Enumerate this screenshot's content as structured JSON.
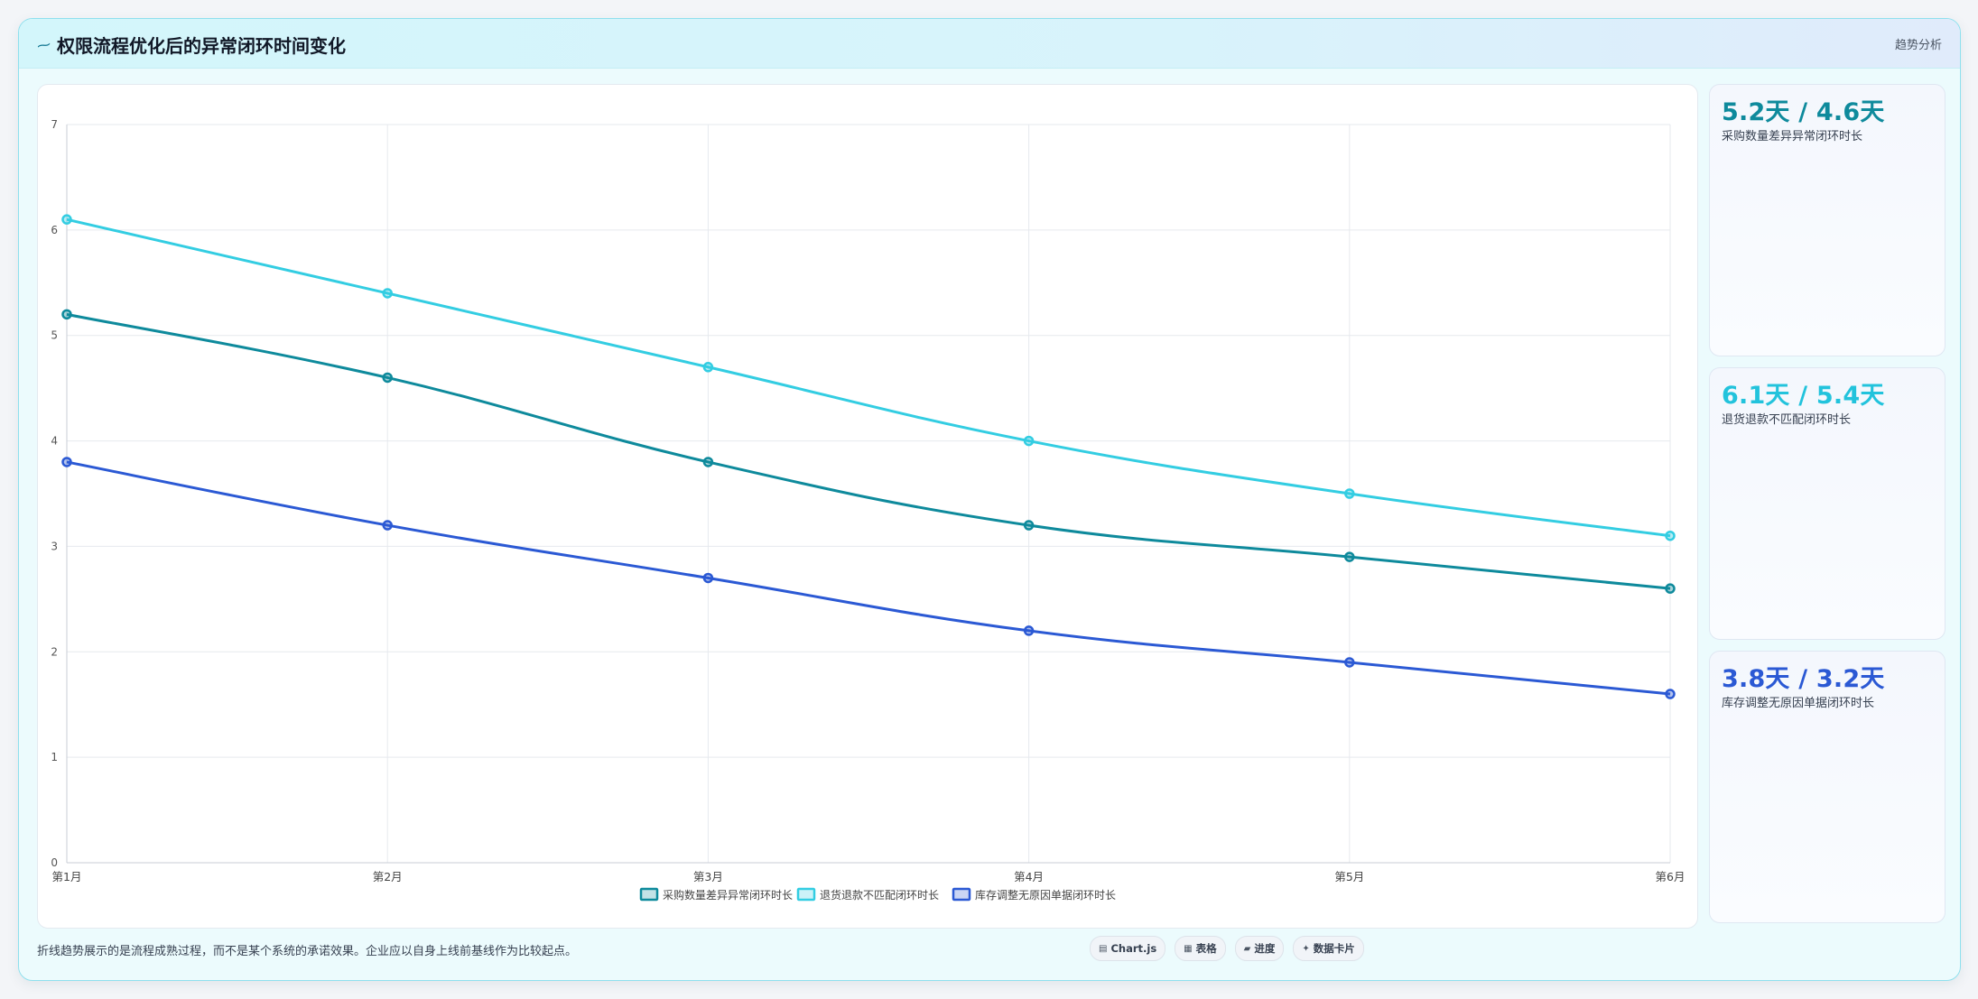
{
  "header": {
    "title": "权限流程优化后的异常闭环时间变化",
    "title_icon": "trend-line-icon",
    "right_label": "趋势分析"
  },
  "stat_cards": [
    {
      "value": "5.2天 / 4.6天",
      "label": "采购数量差异异常闭环时长",
      "color": "#0e8a9c"
    },
    {
      "value": "6.1天 / 5.4天",
      "label": "退货退款不匹配闭环时长",
      "color": "#22c3dc"
    },
    {
      "value": "3.8天 / 3.2天",
      "label": "库存调整无原因单据闭环时长",
      "color": "#2b59d4"
    }
  ],
  "footer": {
    "note": "折线趋势展示的是流程成熟过程，而不是某个系统的承诺效果。企业应以自身上线前基线作为比较起点。",
    "pills": [
      {
        "icon": "chart-icon",
        "glyph": "▤",
        "label": "Chart.js"
      },
      {
        "icon": "table-icon",
        "glyph": "▦",
        "label": "表格"
      },
      {
        "icon": "progress-icon",
        "glyph": "▰",
        "label": "进度"
      },
      {
        "icon": "sparkle-icon",
        "glyph": "✦",
        "label": "数据卡片"
      }
    ]
  },
  "chart_data": {
    "type": "line",
    "categories": [
      "第1月",
      "第2月",
      "第3月",
      "第4月",
      "第5月",
      "第6月"
    ],
    "ylim": [
      0,
      7
    ],
    "yticks": [
      0,
      1,
      2,
      3,
      4,
      5,
      6,
      7
    ],
    "grid": true,
    "legend_position": "bottom",
    "series": [
      {
        "name": "采购数量差异异常闭环时长",
        "color": "#0e8a9c",
        "values": [
          5.2,
          4.6,
          3.8,
          3.2,
          2.9,
          2.6
        ]
      },
      {
        "name": "退货退款不匹配闭环时长",
        "color": "#33cde2",
        "values": [
          6.1,
          5.4,
          4.7,
          4.0,
          3.5,
          3.1
        ]
      },
      {
        "name": "库存调整无原因单据闭环时长",
        "color": "#2b59d4",
        "values": [
          3.8,
          3.2,
          2.7,
          2.2,
          1.9,
          1.6
        ]
      }
    ]
  }
}
